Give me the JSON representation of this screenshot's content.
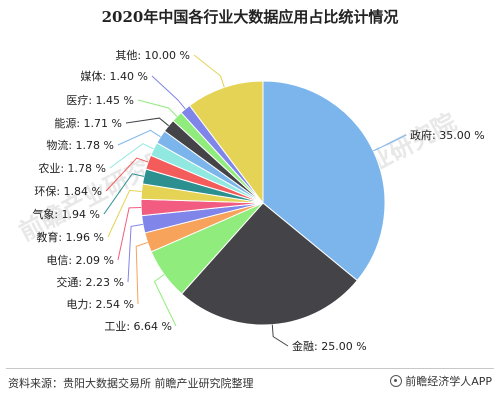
{
  "title": "2020年中国各行业大数据应用占比统计情况",
  "footer": {
    "source": "资料来源：贵阳大数据交易所 前瞻产业研究院整理",
    "brand": "前瞻经济学人APP"
  },
  "watermarks": [
    "前瞻产业研究院",
    "前瞻产业研究院"
  ],
  "chart_data": {
    "type": "pie",
    "title": "2020年中国各行业大数据应用占比统计情况",
    "start_angle_deg": 0,
    "direction": "clockwise",
    "slices": [
      {
        "label": "政府",
        "value": 35.0,
        "text": "政府: 35.00 %",
        "color": "#7cb5ec"
      },
      {
        "label": "金融",
        "value": 25.0,
        "text": "金融: 25.00 %",
        "color": "#434348"
      },
      {
        "label": "工业",
        "value": 6.64,
        "text": "工业: 6.64 %",
        "color": "#90ed7d"
      },
      {
        "label": "电力",
        "value": 2.54,
        "text": "电力: 2.54 %",
        "color": "#f7a35c"
      },
      {
        "label": "交通",
        "value": 2.23,
        "text": "交通: 2.23 %",
        "color": "#8085e9"
      },
      {
        "label": "电信",
        "value": 2.09,
        "text": "电信: 2.09 %",
        "color": "#f15c80"
      },
      {
        "label": "教育",
        "value": 1.96,
        "text": "教育: 1.96 %",
        "color": "#e4d354"
      },
      {
        "label": "气象",
        "value": 1.94,
        "text": "气象: 1.94 %",
        "color": "#2b908f"
      },
      {
        "label": "环保",
        "value": 1.84,
        "text": "环保: 1.84 %",
        "color": "#f45b5b"
      },
      {
        "label": "农业",
        "value": 1.78,
        "text": "农业: 1.78 %",
        "color": "#91e8e1"
      },
      {
        "label": "物流",
        "value": 1.78,
        "text": "物流: 1.78 %",
        "color": "#7cb5ec"
      },
      {
        "label": "能源",
        "value": 1.71,
        "text": "能源: 1.71 %",
        "color": "#434348"
      },
      {
        "label": "医疗",
        "value": 1.45,
        "text": "医疗: 1.45 %",
        "color": "#90ed7d"
      },
      {
        "label": "媒体",
        "value": 1.4,
        "text": "媒体: 1.40 %",
        "color": "#8085e9"
      },
      {
        "label": "其他",
        "value": 10.0,
        "text": "其他: 10.00 %",
        "color": "#e4d354"
      }
    ]
  }
}
